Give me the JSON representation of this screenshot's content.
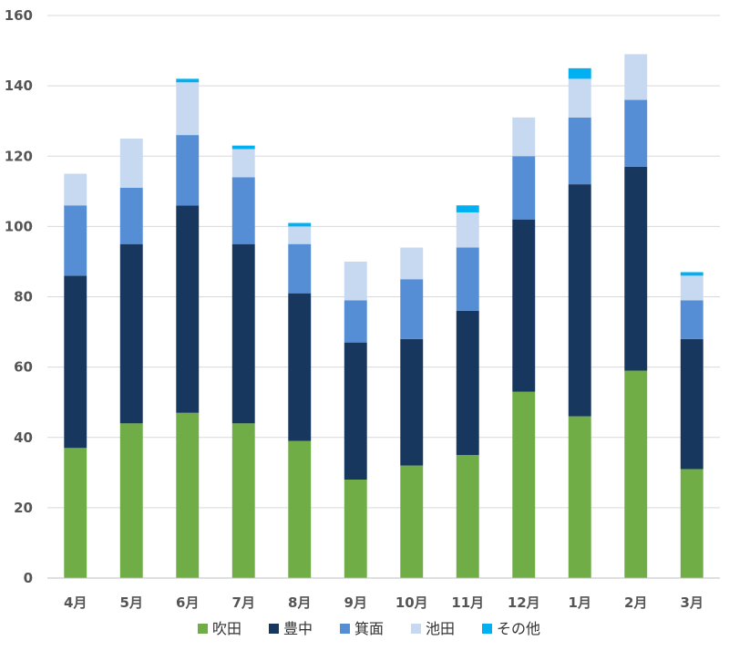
{
  "chart_data": {
    "type": "bar",
    "stacked": true,
    "categories": [
      "4月",
      "5月",
      "6月",
      "7月",
      "8月",
      "9月",
      "10月",
      "11月",
      "12月",
      "1月",
      "2月",
      "3月"
    ],
    "series": [
      {
        "name": "吹田",
        "color": "#70ad47",
        "values": [
          37,
          44,
          47,
          44,
          39,
          28,
          32,
          35,
          53,
          46,
          59,
          31
        ]
      },
      {
        "name": "豊中",
        "color": "#17375e",
        "values": [
          49,
          51,
          59,
          51,
          42,
          39,
          36,
          41,
          49,
          66,
          58,
          37
        ]
      },
      {
        "name": "箕面",
        "color": "#558ed5",
        "values": [
          20,
          16,
          20,
          19,
          14,
          12,
          17,
          18,
          18,
          19,
          19,
          11
        ]
      },
      {
        "name": "池田",
        "color": "#c6d9f1",
        "values": [
          9,
          14,
          15,
          8,
          5,
          11,
          9,
          10,
          11,
          11,
          13,
          7
        ]
      },
      {
        "name": "その他",
        "color": "#00b0f0",
        "values": [
          0,
          0,
          1,
          1,
          1,
          0,
          0,
          2,
          0,
          3,
          0,
          1
        ]
      }
    ],
    "ylim": [
      0,
      160
    ],
    "yticks": [
      0,
      20,
      40,
      60,
      80,
      100,
      120,
      140,
      160
    ],
    "grid": true,
    "legend_position": "bottom"
  }
}
